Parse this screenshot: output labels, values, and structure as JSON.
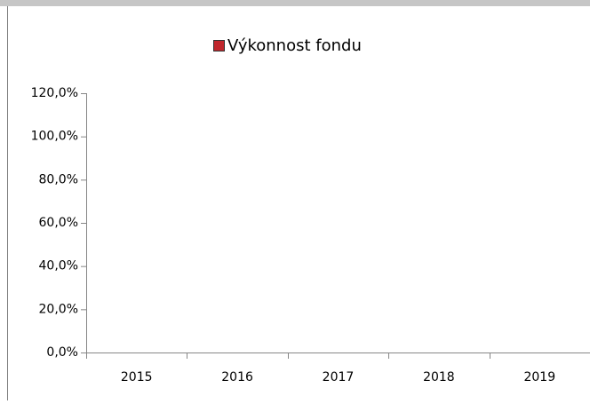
{
  "chart_data": {
    "type": "bar",
    "categories": [
      "2015",
      "2016",
      "2017",
      "2018",
      "2019"
    ],
    "series": [
      {
        "name": "Výkonnost fondu",
        "color": "#c0272d",
        "values": [
          null,
          null,
          null,
          null,
          null
        ]
      }
    ],
    "ylim": [
      0,
      120
    ],
    "yticks": [
      {
        "value": 0,
        "label": "0,0%"
      },
      {
        "value": 20,
        "label": "20,0%"
      },
      {
        "value": 40,
        "label": "40,0%"
      },
      {
        "value": 60,
        "label": "60,0%"
      },
      {
        "value": 80,
        "label": "80,0%"
      },
      {
        "value": 100,
        "label": "100,0%"
      },
      {
        "value": 120,
        "label": "120,0%"
      }
    ],
    "legend": "top",
    "grid": false
  }
}
